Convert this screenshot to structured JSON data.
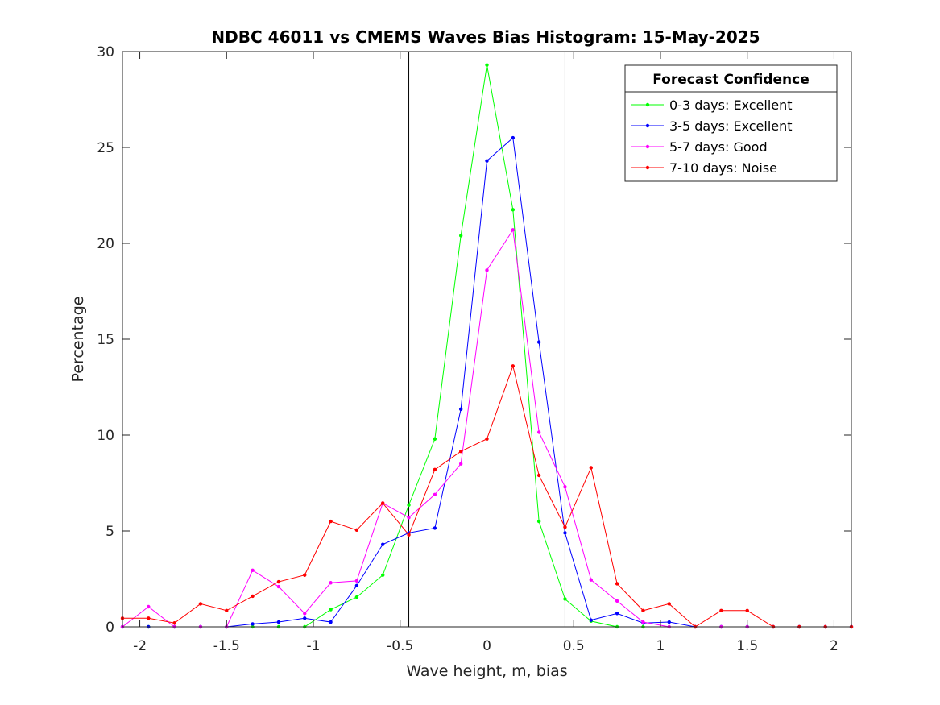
{
  "chart_data": {
    "type": "line",
    "title": "NDBC 46011 vs CMEMS Waves Bias Histogram: 15-May-2025",
    "xlabel": "Wave height, m, bias",
    "ylabel": "Percentage",
    "xlim": [
      -2.1,
      2.1
    ],
    "ylim": [
      0,
      30
    ],
    "x_ticks": [
      -2,
      -1.5,
      -1,
      -0.5,
      0,
      0.5,
      1,
      1.5,
      2
    ],
    "x_tick_labels": [
      "-2",
      "-1.5",
      "-1",
      "-0.5",
      "0",
      "0.5",
      "1",
      "1.5",
      "2"
    ],
    "y_ticks": [
      0,
      5,
      10,
      15,
      20,
      25,
      30
    ],
    "y_tick_labels": [
      "0",
      "5",
      "10",
      "15",
      "20",
      "25",
      "30"
    ],
    "grid": false,
    "vertical_lines": [
      {
        "x": -0.45,
        "style": "solid",
        "color": "#000000"
      },
      {
        "x": 0,
        "style": "dotted",
        "color": "#000000"
      },
      {
        "x": 0.45,
        "style": "solid",
        "color": "#000000"
      }
    ],
    "legend": {
      "title": "Forecast Confidence",
      "position": "top-right"
    },
    "x": [
      -2.1,
      -1.95,
      -1.8,
      -1.65,
      -1.5,
      -1.35,
      -1.2,
      -1.05,
      -0.9,
      -0.75,
      -0.6,
      -0.45,
      -0.3,
      -0.15,
      0,
      0.15,
      0.3,
      0.45,
      0.6,
      0.75,
      0.9,
      1.05,
      1.2,
      1.35,
      1.5,
      1.65,
      1.8,
      1.95,
      2.1
    ],
    "series": [
      {
        "name": "0-3 days: Excellent",
        "color": "#00ff00",
        "values": [
          0,
          0,
          0,
          0,
          0,
          0,
          0,
          0,
          0.9,
          1.55,
          2.7,
          6.35,
          9.8,
          20.4,
          29.3,
          21.75,
          5.5,
          1.45,
          0.3,
          0,
          0,
          0,
          0,
          0,
          0,
          0,
          0,
          0,
          0
        ]
      },
      {
        "name": "3-5 days: Excellent",
        "color": "#0000ff",
        "values": [
          0,
          0,
          0,
          0,
          0,
          0.15,
          0.25,
          0.45,
          0.25,
          2.15,
          4.3,
          4.9,
          5.15,
          11.35,
          24.3,
          25.5,
          14.85,
          4.9,
          0.35,
          0.7,
          0.2,
          0.25,
          0,
          0,
          0,
          0,
          0,
          0,
          0
        ]
      },
      {
        "name": "5-7 days: Good",
        "color": "#ff00ff",
        "values": [
          0,
          1.05,
          0,
          0,
          0,
          2.95,
          2.1,
          0.7,
          2.3,
          2.4,
          6.45,
          5.7,
          6.9,
          8.5,
          18.6,
          20.7,
          10.15,
          7.3,
          2.45,
          1.35,
          0.25,
          0,
          0,
          0,
          0,
          0,
          0,
          0,
          0
        ]
      },
      {
        "name": "7-10 days: Noise",
        "color": "#ff0000",
        "values": [
          0.45,
          0.45,
          0.2,
          1.2,
          0.85,
          1.6,
          2.35,
          2.7,
          5.5,
          5.05,
          6.45,
          4.8,
          8.2,
          9.15,
          9.8,
          13.6,
          7.9,
          5.2,
          8.3,
          2.25,
          0.85,
          1.2,
          0,
          0.85,
          0.85,
          0,
          0,
          0,
          0
        ]
      }
    ]
  }
}
